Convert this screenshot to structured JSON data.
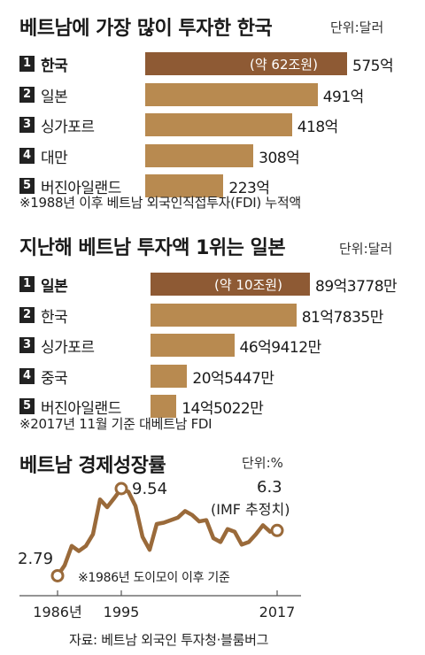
{
  "chart_data": [
    {
      "type": "bar",
      "title": "베트남에 가장 많이 투자한 한국",
      "unit": "단위:달러",
      "categories": [
        "한국",
        "일본",
        "싱가포르",
        "대만",
        "버진아일랜드"
      ],
      "ranks": [
        "1",
        "2",
        "3",
        "4",
        "5"
      ],
      "values": [
        575,
        491,
        418,
        308,
        223
      ],
      "value_labels": [
        "575억",
        "491억",
        "418억",
        "308억",
        "223억"
      ],
      "highlight_note": "(약 62조원)",
      "footnote": "※1988년 이후 베트남 외국인직접투자(FDI) 누적액"
    },
    {
      "type": "bar",
      "title": "지난해 베트남 투자액 1위는 일본",
      "unit": "단위:달러",
      "categories": [
        "일본",
        "한국",
        "싱가포르",
        "중국",
        "버진아일랜드"
      ],
      "ranks": [
        "1",
        "2",
        "3",
        "4",
        "5"
      ],
      "values": [
        89.3778,
        81.7835,
        46.9412,
        20.5447,
        14.5022
      ],
      "value_labels": [
        "89억3778만",
        "81억7835만",
        "46억9412만",
        "20억5447만",
        "14억5022만"
      ],
      "highlight_note": "(약 10조원)",
      "footnote": "※2017년 11월 기준 대베트남 FDI"
    },
    {
      "type": "line",
      "title": "베트남 경제성장률",
      "unit": "단위:%",
      "x": [
        1986,
        1987,
        1988,
        1989,
        1990,
        1991,
        1992,
        1993,
        1994,
        1995,
        1996,
        1997,
        1998,
        1999,
        2000,
        2001,
        2002,
        2003,
        2004,
        2005,
        2006,
        2007,
        2008,
        2009,
        2010,
        2011,
        2012,
        2013,
        2014,
        2015,
        2016,
        2017
      ],
      "y": [
        2.79,
        3.6,
        5.1,
        4.7,
        5.1,
        6.0,
        8.7,
        8.1,
        8.8,
        9.54,
        9.3,
        8.2,
        5.8,
        4.8,
        6.8,
        6.9,
        7.1,
        7.3,
        7.8,
        7.5,
        7.0,
        7.1,
        5.7,
        5.4,
        6.4,
        6.2,
        5.2,
        5.4,
        6.0,
        6.7,
        6.2,
        6.3
      ],
      "ylim": [
        2,
        10.5
      ],
      "tick_labels": [
        "1986년",
        "1995",
        "2017"
      ],
      "tick_values": [
        1986,
        1995,
        2017
      ],
      "annotations": {
        "start": "2.79",
        "peak": "9.54",
        "end": "6.3",
        "end_note": "(IMF 추정치)"
      },
      "footnote": "※1986년 도이모이 이후 기준"
    }
  ],
  "source": "자료: 베트남 외국인 투자청·블룸버그",
  "colors": {
    "bar": "#b88a50",
    "bar_highlight": "#8e5a34",
    "line": "#9a6a3a",
    "point": "#ffffff"
  }
}
